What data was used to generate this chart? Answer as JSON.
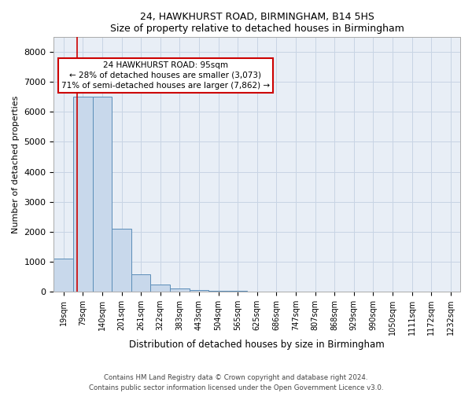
{
  "title1": "24, HAWKHURST ROAD, BIRMINGHAM, B14 5HS",
  "title2": "Size of property relative to detached houses in Birmingham",
  "xlabel": "Distribution of detached houses by size in Birmingham",
  "ylabel": "Number of detached properties",
  "categories": [
    "19sqm",
    "79sqm",
    "140sqm",
    "201sqm",
    "261sqm",
    "322sqm",
    "383sqm",
    "443sqm",
    "504sqm",
    "565sqm",
    "625sqm",
    "686sqm",
    "747sqm",
    "807sqm",
    "868sqm",
    "929sqm",
    "990sqm",
    "1050sqm",
    "1111sqm",
    "1172sqm",
    "1232sqm"
  ],
  "values": [
    1100,
    6500,
    6500,
    2100,
    580,
    250,
    120,
    70,
    45,
    25,
    8,
    0,
    0,
    0,
    0,
    0,
    0,
    0,
    0,
    0,
    0
  ],
  "bar_color": "#c8d8eb",
  "bar_edge_color": "#5b8db8",
  "bar_edge_width": 0.7,
  "grid_color": "#c8d4e4",
  "background_color": "#e8eef6",
  "red_line_x": 0.7,
  "annotation_text": "24 HAWKHURST ROAD: 95sqm\n← 28% of detached houses are smaller (3,073)\n71% of semi-detached houses are larger (7,862) →",
  "annotation_box_color": "#ffffff",
  "annotation_box_edge_color": "#cc0000",
  "ylim": [
    0,
    8500
  ],
  "yticks": [
    0,
    1000,
    2000,
    3000,
    4000,
    5000,
    6000,
    7000,
    8000
  ],
  "footer1": "Contains HM Land Registry data © Crown copyright and database right 2024.",
  "footer2": "Contains public sector information licensed under the Open Government Licence v3.0."
}
